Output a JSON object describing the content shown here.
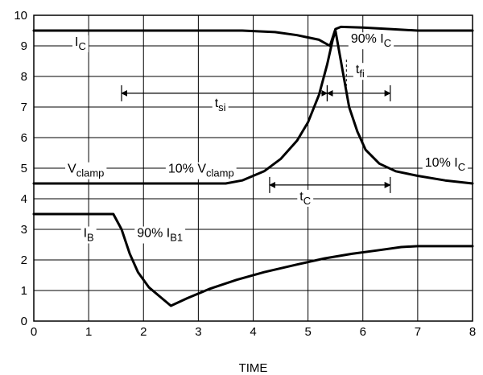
{
  "chart_data": {
    "type": "line",
    "xlabel": "TIME",
    "ylabel": "",
    "xlim": [
      0,
      8
    ],
    "ylim": [
      0,
      10
    ],
    "x_ticks": [
      "0",
      "1",
      "2",
      "3",
      "4",
      "5",
      "6",
      "7",
      "8"
    ],
    "y_ticks": [
      "0",
      "1",
      "2",
      "3",
      "4",
      "5",
      "6",
      "7",
      "8",
      "9",
      "10"
    ],
    "grid": true,
    "series": [
      {
        "name": "IC",
        "points": [
          [
            0,
            9.5
          ],
          [
            3.8,
            9.5
          ],
          [
            4.4,
            9.45
          ],
          [
            4.8,
            9.35
          ],
          [
            5.2,
            9.2
          ],
          [
            5.4,
            9.0
          ],
          [
            5.5,
            9.55
          ],
          [
            5.6,
            9.62
          ],
          [
            6.0,
            9.6
          ],
          [
            6.5,
            9.55
          ],
          [
            7.0,
            9.5
          ],
          [
            8,
            9.5
          ]
        ]
      },
      {
        "name": "Vclamp",
        "points": [
          [
            0,
            4.5
          ],
          [
            3.5,
            4.5
          ],
          [
            3.8,
            4.6
          ],
          [
            4.2,
            4.9
          ],
          [
            4.5,
            5.3
          ],
          [
            4.8,
            5.9
          ],
          [
            5.0,
            6.5
          ],
          [
            5.2,
            7.4
          ],
          [
            5.35,
            8.4
          ],
          [
            5.45,
            9.2
          ],
          [
            5.5,
            9.5
          ],
          [
            5.55,
            9.0
          ],
          [
            5.65,
            8.0
          ],
          [
            5.75,
            7.0
          ],
          [
            5.9,
            6.2
          ],
          [
            6.05,
            5.6
          ],
          [
            6.3,
            5.15
          ],
          [
            6.6,
            4.9
          ],
          [
            7.0,
            4.75
          ],
          [
            7.5,
            4.6
          ],
          [
            8,
            4.5
          ]
        ]
      },
      {
        "name": "IB",
        "points": [
          [
            0,
            3.5
          ],
          [
            1.45,
            3.5
          ],
          [
            1.6,
            3.0
          ],
          [
            1.75,
            2.2
          ],
          [
            1.9,
            1.6
          ],
          [
            2.1,
            1.1
          ],
          [
            2.3,
            0.8
          ],
          [
            2.5,
            0.5
          ],
          [
            2.8,
            0.75
          ],
          [
            3.2,
            1.05
          ],
          [
            3.7,
            1.35
          ],
          [
            4.2,
            1.6
          ],
          [
            4.8,
            1.85
          ],
          [
            5.3,
            2.05
          ],
          [
            5.8,
            2.2
          ],
          [
            6.3,
            2.32
          ],
          [
            6.7,
            2.42
          ],
          [
            7.0,
            2.45
          ],
          [
            8,
            2.45
          ]
        ]
      }
    ],
    "annotations": [
      {
        "main": "I",
        "sub": "C",
        "x": 0.85,
        "y": 9.0
      },
      {
        "main": "90% I",
        "sub": "C",
        "x": 6.15,
        "y": 9.1
      },
      {
        "main": "t",
        "sub": "fi",
        "x": 5.95,
        "y": 8.1
      },
      {
        "main": "t",
        "sub": "si",
        "x": 3.4,
        "y": 7.0
      },
      {
        "main": "V",
        "sub": "clamp",
        "x": 0.95,
        "y": 4.85
      },
      {
        "main": "10% V",
        "sub": "clamp",
        "x": 3.05,
        "y": 4.85
      },
      {
        "main": "10% I",
        "sub": "C",
        "x": 7.5,
        "y": 5.05
      },
      {
        "main": "t",
        "sub": "C",
        "x": 4.95,
        "y": 3.95
      },
      {
        "main": "I",
        "sub": "B",
        "x": 1.0,
        "y": 2.75
      },
      {
        "main": "90% I",
        "sub": "B1",
        "x": 2.3,
        "y": 2.75
      }
    ],
    "intervals": [
      {
        "label": "tsi",
        "from": 1.6,
        "to": 5.35,
        "y": 7.45
      },
      {
        "label": "tfi",
        "from": 5.35,
        "to": 6.5,
        "y": 7.45
      },
      {
        "label": "tc",
        "from": 4.3,
        "to": 6.5,
        "y": 4.45
      }
    ]
  }
}
